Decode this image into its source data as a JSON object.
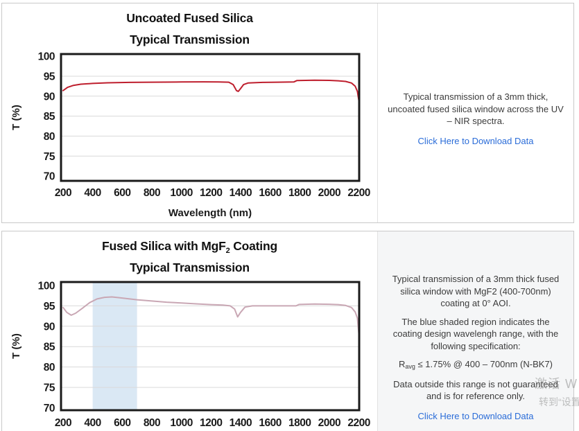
{
  "rows": [
    {
      "title_line1_pre": "Uncoated Fused Silica",
      "title_line1_sub": "",
      "title_line1_post": "",
      "title_line2": "Typical Transmission",
      "para1": "Typical transmission of a 3mm thick, uncoated fused silica window across the UV – NIR spectra.",
      "link_label": "Click Here to Download Data"
    },
    {
      "title_line1_pre": "Fused Silica with MgF",
      "title_line1_sub": "2",
      "title_line1_post": " Coating",
      "title_line2": "Typical Transmission",
      "para1": "Typical transmission of a 3mm thick fused silica window with MgF2 (400-700nm) coating at 0° AOI.",
      "para2": "The blue shaded region indicates the coating design wavelengh range, with the following specification:",
      "spec_pre": "R",
      "spec_sub": "avg",
      "spec_post": " ≤ 1.75% @ 400 – 700nm (N-BK7)",
      "para3": "Data outside this range is not guaranteed and is for reference only.",
      "link_label": "Click Here to Download Data"
    }
  ],
  "chart_data": [
    {
      "type": "line",
      "title": "Uncoated Fused Silica — Typical Transmission",
      "xlabel": "Wavelength (nm)",
      "ylabel": "T (%)",
      "xlim": [
        186,
        2202
      ],
      "ylim": [
        68.8,
        100.55
      ],
      "xticks": [
        200,
        400,
        600,
        800,
        1000,
        1200,
        1400,
        1600,
        1800,
        2000,
        2200
      ],
      "yticks": [
        70,
        75,
        80,
        85,
        90,
        95,
        100
      ],
      "gridlines": [
        75,
        80,
        85,
        90,
        95
      ],
      "grid_color": "#d9d9d9",
      "line_color": "#be1e2d",
      "shaded_region": null,
      "points": [
        [
          200,
          91.4
        ],
        [
          230,
          92.2
        ],
        [
          270,
          92.7
        ],
        [
          320,
          93.0
        ],
        [
          400,
          93.2
        ],
        [
          500,
          93.35
        ],
        [
          650,
          93.45
        ],
        [
          800,
          93.5
        ],
        [
          1000,
          93.55
        ],
        [
          1150,
          93.6
        ],
        [
          1250,
          93.55
        ],
        [
          1320,
          93.5
        ],
        [
          1350,
          92.9
        ],
        [
          1372,
          91.4
        ],
        [
          1385,
          91.2
        ],
        [
          1400,
          91.9
        ],
        [
          1420,
          92.9
        ],
        [
          1450,
          93.3
        ],
        [
          1550,
          93.45
        ],
        [
          1650,
          93.5
        ],
        [
          1760,
          93.55
        ],
        [
          1780,
          93.9
        ],
        [
          1900,
          94.0
        ],
        [
          2000,
          93.95
        ],
        [
          2060,
          93.85
        ],
        [
          2110,
          93.7
        ],
        [
          2150,
          93.3
        ],
        [
          2175,
          92.5
        ],
        [
          2190,
          91.2
        ],
        [
          2200,
          88.8
        ]
      ]
    },
    {
      "type": "line",
      "title": "Fused Silica with MgF2 Coating — Typical Transmission",
      "xlabel": "",
      "ylabel": "T (%)",
      "xlim": [
        186,
        2202
      ],
      "ylim": [
        69.4,
        100.85
      ],
      "xticks": [
        200,
        400,
        600,
        800,
        1000,
        1200,
        1400,
        1600,
        1800,
        2000,
        2200
      ],
      "yticks": [
        70,
        75,
        80,
        85,
        90,
        95,
        100
      ],
      "gridlines": [
        75,
        80,
        85,
        90,
        95
      ],
      "grid_color": "#d9d9d9",
      "line_color": "#c9a7b4",
      "shaded_region": {
        "x0": 400,
        "x1": 700,
        "color": "#dae8f4"
      },
      "points": [
        [
          200,
          94.6
        ],
        [
          225,
          93.4
        ],
        [
          255,
          92.7
        ],
        [
          285,
          93.2
        ],
        [
          330,
          94.4
        ],
        [
          380,
          95.8
        ],
        [
          430,
          96.7
        ],
        [
          480,
          97.1
        ],
        [
          530,
          97.2
        ],
        [
          580,
          97.0
        ],
        [
          650,
          96.7
        ],
        [
          700,
          96.5
        ],
        [
          800,
          96.2
        ],
        [
          900,
          95.9
        ],
        [
          1000,
          95.7
        ],
        [
          1100,
          95.5
        ],
        [
          1200,
          95.3
        ],
        [
          1280,
          95.2
        ],
        [
          1330,
          95.0
        ],
        [
          1360,
          94.2
        ],
        [
          1380,
          92.3
        ],
        [
          1400,
          93.4
        ],
        [
          1430,
          94.7
        ],
        [
          1480,
          95.0
        ],
        [
          1600,
          95.0
        ],
        [
          1700,
          95.0
        ],
        [
          1775,
          95.0
        ],
        [
          1795,
          95.35
        ],
        [
          1900,
          95.45
        ],
        [
          2000,
          95.4
        ],
        [
          2060,
          95.3
        ],
        [
          2110,
          95.1
        ],
        [
          2150,
          94.6
        ],
        [
          2175,
          93.5
        ],
        [
          2190,
          92.0
        ],
        [
          2200,
          88.0
        ]
      ]
    }
  ],
  "watermark": {
    "line1": "激活 W",
    "line2": "转到“设置"
  }
}
